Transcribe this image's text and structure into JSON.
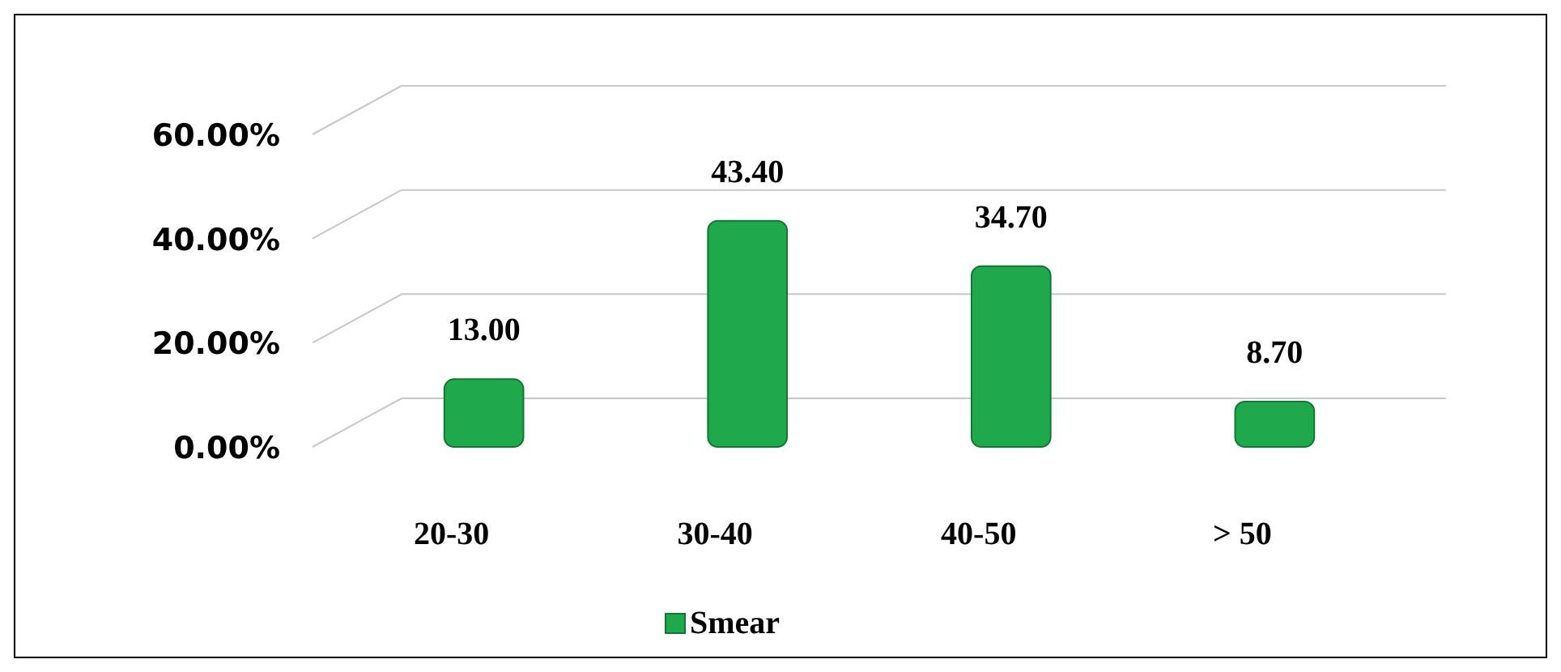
{
  "chart_data": {
    "type": "bar",
    "categories": [
      "20-30",
      "30-40",
      "40-50",
      "> 50"
    ],
    "series": [
      {
        "name": "Smear",
        "color": "#1fa84c",
        "values": [
          13,
          43.4,
          34.7,
          8.7
        ],
        "value_labels": [
          "13.00",
          "43.40",
          "34.70",
          "8.70"
        ]
      }
    ],
    "ylim": [
      0,
      60
    ],
    "yticks": [
      {
        "value": 0,
        "label": "0.00%"
      },
      {
        "value": 20,
        "label": "20.00%"
      },
      {
        "value": 40,
        "label": "40.00%"
      },
      {
        "value": 60,
        "label": "60.00%"
      }
    ],
    "grid": "y",
    "legend": "bottom"
  }
}
